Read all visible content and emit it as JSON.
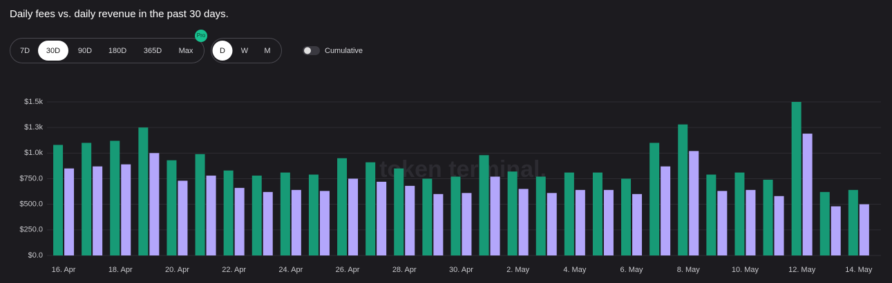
{
  "header": {
    "title": "Daily fees vs. daily revenue in the past 30 days."
  },
  "controls": {
    "ranges": [
      "7D",
      "30D",
      "90D",
      "180D",
      "365D",
      "Max"
    ],
    "selected_range": 1,
    "badge": "Pro",
    "intervals": [
      "D",
      "W",
      "M"
    ],
    "selected_interval": 0,
    "toggle": "Cumulative"
  },
  "chart_data": {
    "type": "bar",
    "watermark": "token terminal.",
    "categories": [
      "16. Apr",
      null,
      "18. Apr",
      null,
      "20. Apr",
      null,
      "22. Apr",
      null,
      "24. Apr",
      null,
      "26. Apr",
      null,
      "28. Apr",
      null,
      "30. Apr",
      null,
      "2. May",
      null,
      "4. May",
      null,
      "6. May",
      null,
      "8. May",
      null,
      "10. May",
      null,
      "12. May",
      null,
      "14. May"
    ],
    "series": [
      {
        "color": "#179a76",
        "values": [
          1080,
          1100,
          1120,
          1250,
          930,
          990,
          830,
          780,
          810,
          790,
          950,
          910,
          850,
          750,
          770,
          980,
          820,
          770,
          810,
          810,
          750,
          1100,
          1280,
          790,
          810,
          740,
          1500,
          620,
          640
        ]
      },
      {
        "color": "#b3a6fb",
        "values": [
          850,
          870,
          890,
          1000,
          730,
          780,
          660,
          620,
          640,
          630,
          750,
          720,
          680,
          600,
          610,
          770,
          650,
          610,
          640,
          640,
          600,
          870,
          1020,
          630,
          640,
          580,
          1190,
          480,
          500
        ]
      }
    ],
    "ylim": [
      0,
      1500
    ],
    "yticks": [
      {
        "value": 0,
        "label": "$0.0"
      },
      {
        "value": 250,
        "label": "$250.0"
      },
      {
        "value": 500,
        "label": "$500.0"
      },
      {
        "value": 750,
        "label": "$750.0"
      },
      {
        "value": 1000,
        "label": "$1.0k"
      },
      {
        "value": 1250,
        "label": "$1.3k"
      },
      {
        "value": 1500,
        "label": "$1.5k"
      }
    ],
    "grid": true
  }
}
